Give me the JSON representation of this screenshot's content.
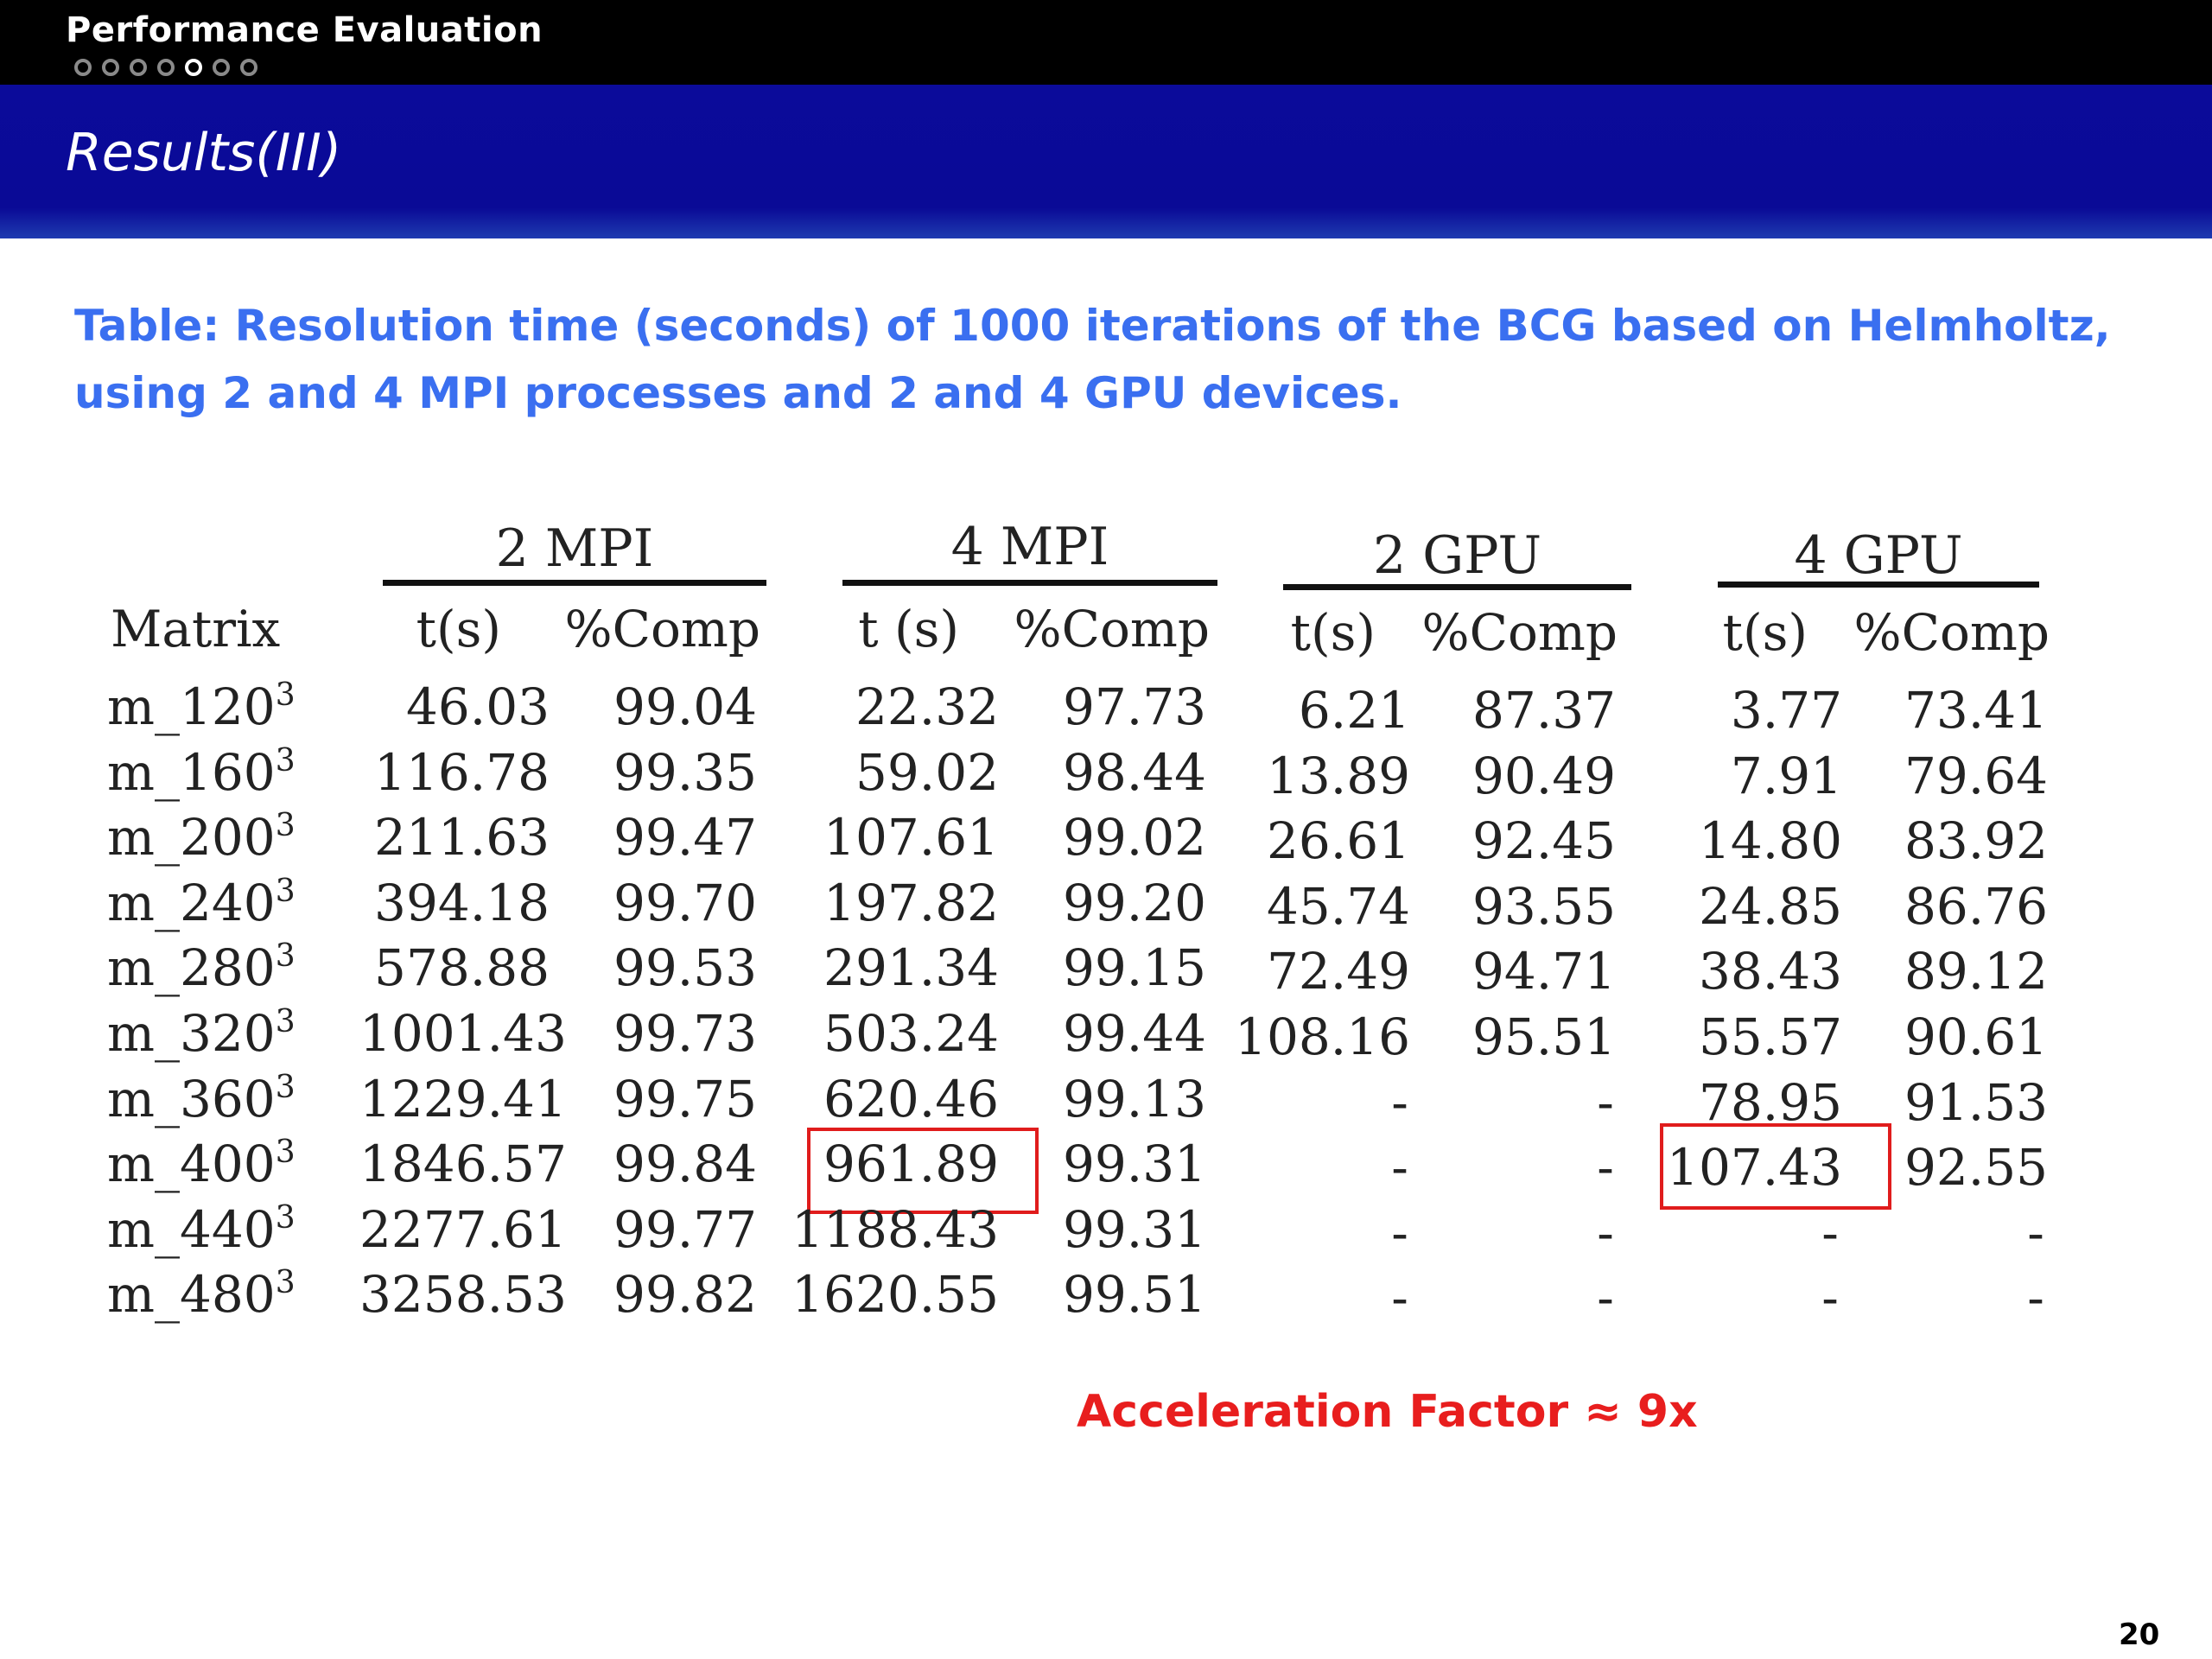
{
  "header": {
    "section": "Performance Evaluation",
    "progress_dots": 7,
    "current_dot": 5,
    "title": "Results(III)"
  },
  "caption": "Table: Resolution time (seconds) of 1000 iterations of the BCG based on Helmholtz, using 2 and 4 MPI processes and 2 and 4 GPU devices.",
  "table": {
    "groups": [
      "2 MPI",
      "4 MPI",
      "2 GPU",
      "4 GPU"
    ],
    "subheaders": [
      "Matrix",
      "t(s)",
      "%Comp",
      "t (s)",
      "%Comp",
      "t(s)",
      "%Comp",
      "t(s)",
      "%Comp"
    ],
    "rows": [
      {
        "matrix": "m_120",
        "exp": "3",
        "v": [
          "46.03",
          "99.04",
          "22.32",
          "97.73",
          "6.21",
          "87.37",
          "3.77",
          "73.41"
        ]
      },
      {
        "matrix": "m_160",
        "exp": "3",
        "v": [
          "116.78",
          "99.35",
          "59.02",
          "98.44",
          "13.89",
          "90.49",
          "7.91",
          "79.64"
        ]
      },
      {
        "matrix": "m_200",
        "exp": "3",
        "v": [
          "211.63",
          "99.47",
          "107.61",
          "99.02",
          "26.61",
          "92.45",
          "14.80",
          "83.92"
        ]
      },
      {
        "matrix": "m_240",
        "exp": "3",
        "v": [
          "394.18",
          "99.70",
          "197.82",
          "99.20",
          "45.74",
          "93.55",
          "24.85",
          "86.76"
        ]
      },
      {
        "matrix": "m_280",
        "exp": "3",
        "v": [
          "578.88",
          "99.53",
          "291.34",
          "99.15",
          "72.49",
          "94.71",
          "38.43",
          "89.12"
        ]
      },
      {
        "matrix": "m_320",
        "exp": "3",
        "v": [
          "1001.43",
          "99.73",
          "503.24",
          "99.44",
          "108.16",
          "95.51",
          "55.57",
          "90.61"
        ]
      },
      {
        "matrix": "m_360",
        "exp": "3",
        "v": [
          "1229.41",
          "99.75",
          "620.46",
          "99.13",
          "-",
          "-",
          "78.95",
          "91.53"
        ]
      },
      {
        "matrix": "m_400",
        "exp": "3",
        "v": [
          "1846.57",
          "99.84",
          "961.89",
          "99.31",
          "-",
          "-",
          "107.43",
          "92.55"
        ]
      },
      {
        "matrix": "m_440",
        "exp": "3",
        "v": [
          "2277.61",
          "99.77",
          "1188.43",
          "99.31",
          "-",
          "-",
          "-",
          "-"
        ]
      },
      {
        "matrix": "m_480",
        "exp": "3",
        "v": [
          "3258.53",
          "99.82",
          "1620.55",
          "99.51",
          "-",
          "-",
          "-",
          "-"
        ]
      }
    ],
    "highlights": [
      "4 MPI t (s) m_400",
      "4 GPU t(s) m_400"
    ]
  },
  "accel": "Acceleration Factor ≈ 9x",
  "page_number": "20",
  "colors": {
    "top_bar": "#000000",
    "title_bar": "#0a0a96",
    "caption": "#3a6ff0",
    "highlight": "#e01c1c",
    "accel": "#e81e1e"
  }
}
